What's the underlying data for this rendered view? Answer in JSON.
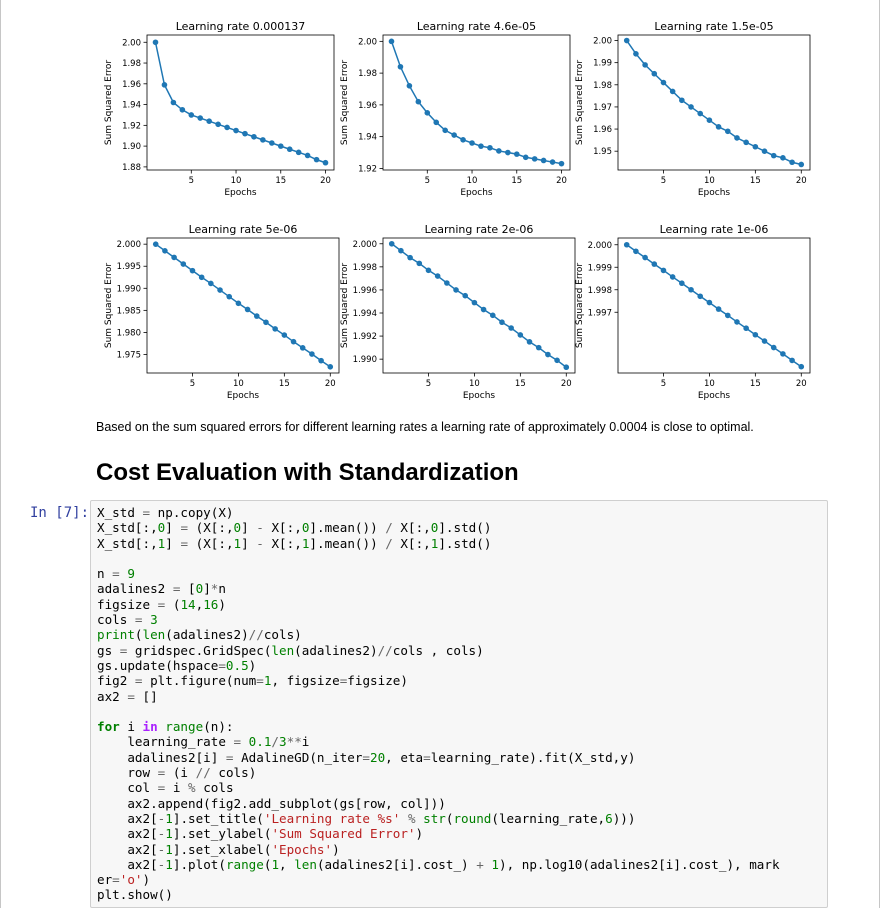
{
  "output_plots": {
    "ylabel": "Sum Squared Error",
    "xlabel": "Epochs",
    "x_ticks": [
      "5",
      "10",
      "15",
      "20"
    ]
  },
  "chart_data": [
    {
      "type": "line",
      "title": "Learning rate 0.000137",
      "xlabel": "Epochs",
      "ylabel": "Sum Squared Error",
      "marker": "o",
      "color": "#1f77b4",
      "x": [
        1,
        2,
        3,
        4,
        5,
        6,
        7,
        8,
        9,
        10,
        11,
        12,
        13,
        14,
        15,
        16,
        17,
        18,
        19,
        20
      ],
      "y": [
        2.0,
        1.959,
        1.942,
        1.935,
        1.93,
        1.927,
        1.924,
        1.921,
        1.918,
        1.915,
        1.912,
        1.909,
        1.906,
        1.903,
        1.9,
        1.897,
        1.894,
        1.891,
        1.887,
        1.884
      ],
      "xlim": [
        0.05,
        20.95
      ],
      "ylim": [
        1.877,
        2.007
      ],
      "yticks": [
        "2.00",
        "1.98",
        "1.96",
        "1.94",
        "1.92",
        "1.90",
        "1.88"
      ],
      "ytick_values": [
        2.0,
        1.98,
        1.96,
        1.94,
        1.92,
        1.9,
        1.88
      ]
    },
    {
      "type": "line",
      "title": "Learning rate 4.6e-05",
      "xlabel": "Epochs",
      "ylabel": "Sum Squared Error",
      "marker": "o",
      "color": "#1f77b4",
      "x": [
        1,
        2,
        3,
        4,
        5,
        6,
        7,
        8,
        9,
        10,
        11,
        12,
        13,
        14,
        15,
        16,
        17,
        18,
        19,
        20
      ],
      "y": [
        2.0,
        1.984,
        1.972,
        1.962,
        1.955,
        1.949,
        1.944,
        1.941,
        1.938,
        1.936,
        1.934,
        1.933,
        1.931,
        1.93,
        1.929,
        1.927,
        1.926,
        1.925,
        1.924,
        1.923
      ],
      "xlim": [
        0.05,
        20.95
      ],
      "ylim": [
        1.919,
        2.004
      ],
      "yticks": [
        "2.00",
        "1.98",
        "1.96",
        "1.94",
        "1.92"
      ],
      "ytick_values": [
        2.0,
        1.98,
        1.96,
        1.94,
        1.92
      ]
    },
    {
      "type": "line",
      "title": "Learning rate 1.5e-05",
      "xlabel": "Epochs",
      "ylabel": "Sum Squared Error",
      "marker": "o",
      "color": "#1f77b4",
      "x": [
        1,
        2,
        3,
        4,
        5,
        6,
        7,
        8,
        9,
        10,
        11,
        12,
        13,
        14,
        15,
        16,
        17,
        18,
        19,
        20
      ],
      "y": [
        2.0,
        1.994,
        1.989,
        1.985,
        1.981,
        1.977,
        1.973,
        1.97,
        1.967,
        1.964,
        1.961,
        1.959,
        1.956,
        1.954,
        1.952,
        1.95,
        1.948,
        1.947,
        1.945,
        1.944
      ],
      "xlim": [
        0.05,
        20.95
      ],
      "ylim": [
        1.9415,
        2.0025
      ],
      "yticks": [
        "2.00",
        "1.99",
        "1.98",
        "1.97",
        "1.96",
        "1.95"
      ],
      "ytick_values": [
        2.0,
        1.99,
        1.98,
        1.97,
        1.96,
        1.95
      ]
    },
    {
      "type": "line",
      "title": "Learning rate 5e-06",
      "xlabel": "Epochs",
      "ylabel": "Sum Squared Error",
      "marker": "o",
      "color": "#1f77b4",
      "x": [
        1,
        2,
        3,
        4,
        5,
        6,
        7,
        8,
        9,
        10,
        11,
        12,
        13,
        14,
        15,
        16,
        17,
        18,
        19,
        20
      ],
      "y": [
        2.0,
        1.9985,
        1.997,
        1.9955,
        1.994,
        1.9925,
        1.9911,
        1.9896,
        1.9881,
        1.9866,
        1.9852,
        1.9837,
        1.9823,
        1.9808,
        1.9794,
        1.9779,
        1.9765,
        1.9751,
        1.9736,
        1.9722
      ],
      "xlim": [
        0.05,
        20.95
      ],
      "ylim": [
        1.9708,
        2.0014
      ],
      "yticks": [
        "2.000",
        "1.995",
        "1.990",
        "1.985",
        "1.980",
        "1.975"
      ],
      "ytick_values": [
        2.0,
        1.995,
        1.99,
        1.985,
        1.98,
        1.975
      ]
    },
    {
      "type": "line",
      "title": "Learning rate 2e-06",
      "xlabel": "Epochs",
      "ylabel": "Sum Squared Error",
      "marker": "o",
      "color": "#1f77b4",
      "x": [
        1,
        2,
        3,
        4,
        5,
        6,
        7,
        8,
        9,
        10,
        11,
        12,
        13,
        14,
        15,
        16,
        17,
        18,
        19,
        20
      ],
      "y": [
        2.0,
        1.9994,
        1.9988,
        1.9983,
        1.9977,
        1.9972,
        1.9966,
        1.996,
        1.9955,
        1.9949,
        1.9943,
        1.9938,
        1.9932,
        1.9927,
        1.9921,
        1.9915,
        1.991,
        1.9904,
        1.9899,
        1.9893
      ],
      "xlim": [
        0.05,
        20.95
      ],
      "ylim": [
        1.9888,
        2.0005
      ],
      "yticks": [
        "2.000",
        "1.998",
        "1.996",
        "1.994",
        "1.992",
        "1.990"
      ],
      "ytick_values": [
        2.0,
        1.998,
        1.996,
        1.994,
        1.992,
        1.99
      ]
    },
    {
      "type": "line",
      "title": "Learning rate 1e-06",
      "xlabel": "Epochs",
      "ylabel": "Sum Squared Error",
      "marker": "o",
      "color": "#1f77b4",
      "x": [
        1,
        2,
        3,
        4,
        5,
        6,
        7,
        8,
        9,
        10,
        11,
        12,
        13,
        14,
        15,
        16,
        17,
        18,
        19,
        20
      ],
      "y": [
        2.0,
        1.99971,
        1.99943,
        1.99914,
        1.99886,
        1.99857,
        1.99829,
        1.998,
        1.99771,
        1.99743,
        1.99714,
        1.99686,
        1.99657,
        1.99629,
        1.996,
        1.99572,
        1.99543,
        1.99515,
        1.99486,
        1.99458
      ],
      "xlim": [
        0.05,
        20.95
      ],
      "ylim": [
        1.9943,
        2.0003
      ],
      "yticks": [
        "2.000",
        "1.999",
        "1.998",
        "1.997"
      ],
      "ytick_values": [
        2.0,
        1.999,
        1.998,
        1.997
      ]
    }
  ],
  "markdown": {
    "paragraph": "Based on the sum squared errors for different learning rates a learning rate of approximately 0.0004 is close to optimal.",
    "heading": "Cost Evaluation with Standardization"
  },
  "cell": {
    "prompt": "In [7]:",
    "code_lines": [
      "X_std = np.copy(X)",
      "X_std[:,0] = (X[:,0] - X[:,0].mean()) / X[:,0].std()",
      "X_std[:,1] = (X[:,1] - X[:,1].mean()) / X[:,1].std()",
      "",
      "n = 9",
      "adalines2 = [0]*n",
      "figsize = (14,16)",
      "cols = 3",
      "print(len(adalines2)//cols)",
      "gs = gridspec.GridSpec(len(adalines2)//cols , cols)",
      "gs.update(hspace=0.5)",
      "fig2 = plt.figure(num=1, figsize=figsize)",
      "ax2 = []",
      "",
      "for i in range(n):",
      "    learning_rate = 0.1/3**i",
      "    adalines2[i] = AdalineGD(n_iter=20, eta=learning_rate).fit(X_std,y)",
      "    row = (i // cols)",
      "    col = i % cols",
      "    ax2.append(fig2.add_subplot(gs[row, col]))",
      "    ax2[-1].set_title('Learning rate %s' % str(round(learning_rate,6)))",
      "    ax2[-1].set_ylabel('Sum Squared Error')",
      "    ax2[-1].set_xlabel('Epochs')",
      "    ax2[-1].plot(range(1, len(adalines2[i].cost_) + 1), np.log10(adalines2[i].cost_), mark",
      "er='o')",
      "plt.show()"
    ]
  }
}
